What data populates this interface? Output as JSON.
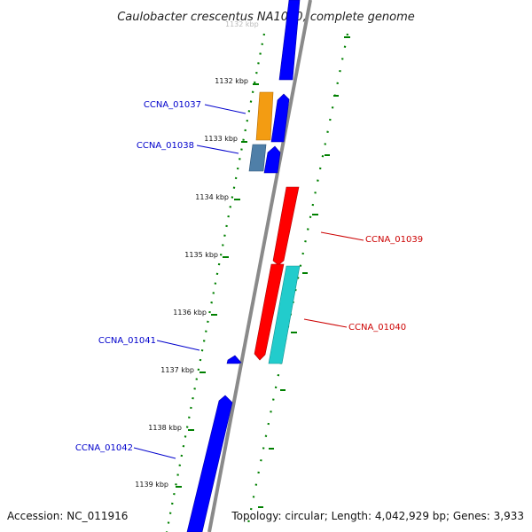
{
  "title": "Caulobacter crescentus NA1000, complete genome",
  "title_partial": "1132 kbp",
  "footer": {
    "accession": "Accession: NC_011916",
    "topology": "Topology: circular; Length: 4,042,929 bp; Genes: 3,933"
  },
  "ticks": [
    "1132 kbp",
    "1133 kbp",
    "1134 kbp",
    "1135 kbp",
    "1136 kbp",
    "1137 kbp",
    "1138 kbp",
    "1139 kbp"
  ],
  "genes": [
    {
      "label": "CCNA_01037",
      "color": "#f39c12",
      "strand": "forward"
    },
    {
      "label": "CCNA_01038",
      "color": "#4f7fa8",
      "strand": "forward"
    },
    {
      "label": "CCNA_01039",
      "color": "#ff0000",
      "strand": "reverse"
    },
    {
      "label": "CCNA_01040",
      "color": "#ff0000",
      "strand": "reverse"
    },
    {
      "label": "CCNA_01041",
      "color": "#0000ff",
      "strand": "forward"
    },
    {
      "label": "CCNA_01042",
      "color": "#0000ff",
      "strand": "forward"
    }
  ],
  "colors": {
    "forward_gene": "#0000ff",
    "reverse_gene": "#ff0000",
    "reverse_gene_secondary": "#22cccc",
    "backbone": "#888888",
    "gc_track": "#008000",
    "label_forward": "#0000cc",
    "label_reverse": "#cc0000"
  }
}
